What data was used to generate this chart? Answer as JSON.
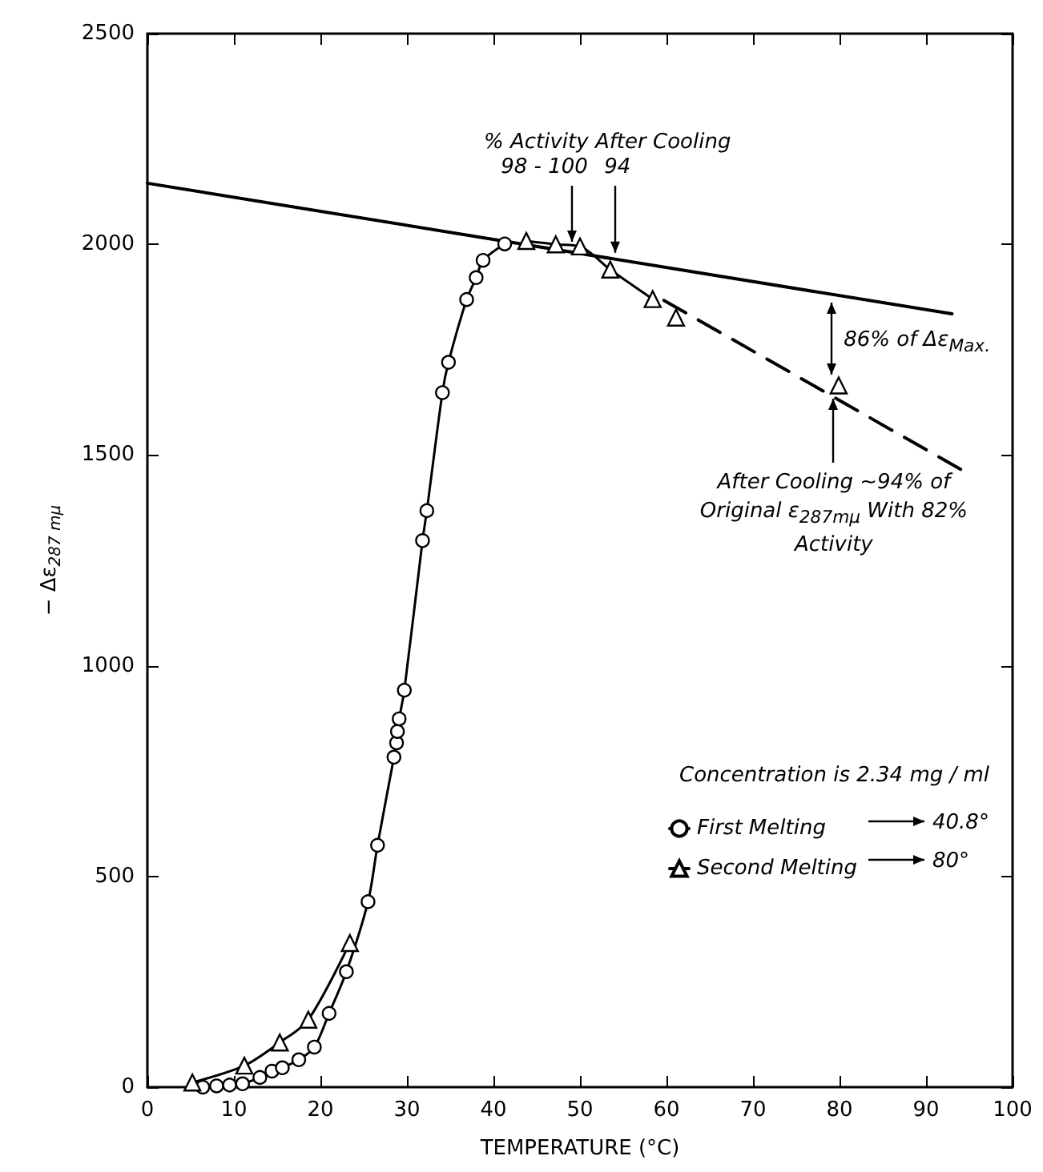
{
  "chart_data": {
    "type": "line",
    "xlabel": "TEMPERATURE (°C)",
    "ylabel": "− Δε$_{287 mμ}$",
    "xlim": [
      0,
      100
    ],
    "xticks": [
      0,
      10,
      20,
      30,
      40,
      50,
      60,
      70,
      80,
      90,
      100
    ],
    "ylim": [
      0,
      2500
    ],
    "yticks": [
      0,
      500,
      1000,
      1500,
      2000,
      2500
    ],
    "grid": false,
    "legend": "right",
    "legend_title": "Concentration is 2.34 mg / ml",
    "series": [
      {
        "name": "First Melting",
        "color": "#000000",
        "marker": "circle",
        "x": [
          6.4,
          8,
          9.5,
          11,
          13,
          14.4,
          15.6,
          17.5,
          19.3,
          21,
          23,
          25.5,
          26.6,
          28.5,
          28.8,
          28.9,
          29.1,
          29.7,
          31.8,
          32.3,
          34.1,
          34.8,
          36.9,
          38,
          38.8,
          41.3
        ],
        "values": [
          0,
          3,
          5,
          8,
          23,
          38,
          46,
          65,
          95,
          175,
          274,
          440,
          574,
          783,
          817,
          844,
          874,
          942,
          1297,
          1368,
          1648,
          1720,
          1869,
          1921,
          1962,
          2001
        ]
      },
      {
        "name": "Second Melting",
        "color": "#000000",
        "marker": "triangle",
        "x": [
          5.2,
          11.2,
          15.3,
          18.6,
          23.4,
          30,
          43.8,
          47.2,
          50,
          53.5,
          58.4,
          59,
          61.1,
          70,
          79.9
        ],
        "values": [
          11,
          51,
          106,
          160,
          342,
          null,
          2008,
          2000,
          1995,
          1940,
          1870,
          null,
          1826,
          null,
          1665
        ]
      },
      {
        "color": "#000000",
        "marker": "none",
        "x": [
          0,
          93
        ],
        "values": [
          2145,
          1835
        ]
      },
      {
        "color": "#000000",
        "marker": "none",
        "line_style": "dashed",
        "x": [
          59.7,
          94
        ],
        "values": [
          1867,
          1466
        ]
      }
    ],
    "annotations": [
      "% Activity After Cooling",
      {
        "text": "98 - 100",
        "x": 49,
        "y": 1995
      },
      {
        "text": "94",
        "x": 54,
        "y": 1965
      },
      {
        "text": "86% of Δε$_{Max.}$",
        "x": 79,
        "y": 1870
      },
      {
        "text": "After Cooling ~94% of Original ε$_{287mμ}$ With 82% Activity",
        "x": 79.9,
        "y": 1665
      },
      "40.8°",
      "80°"
    ]
  }
}
